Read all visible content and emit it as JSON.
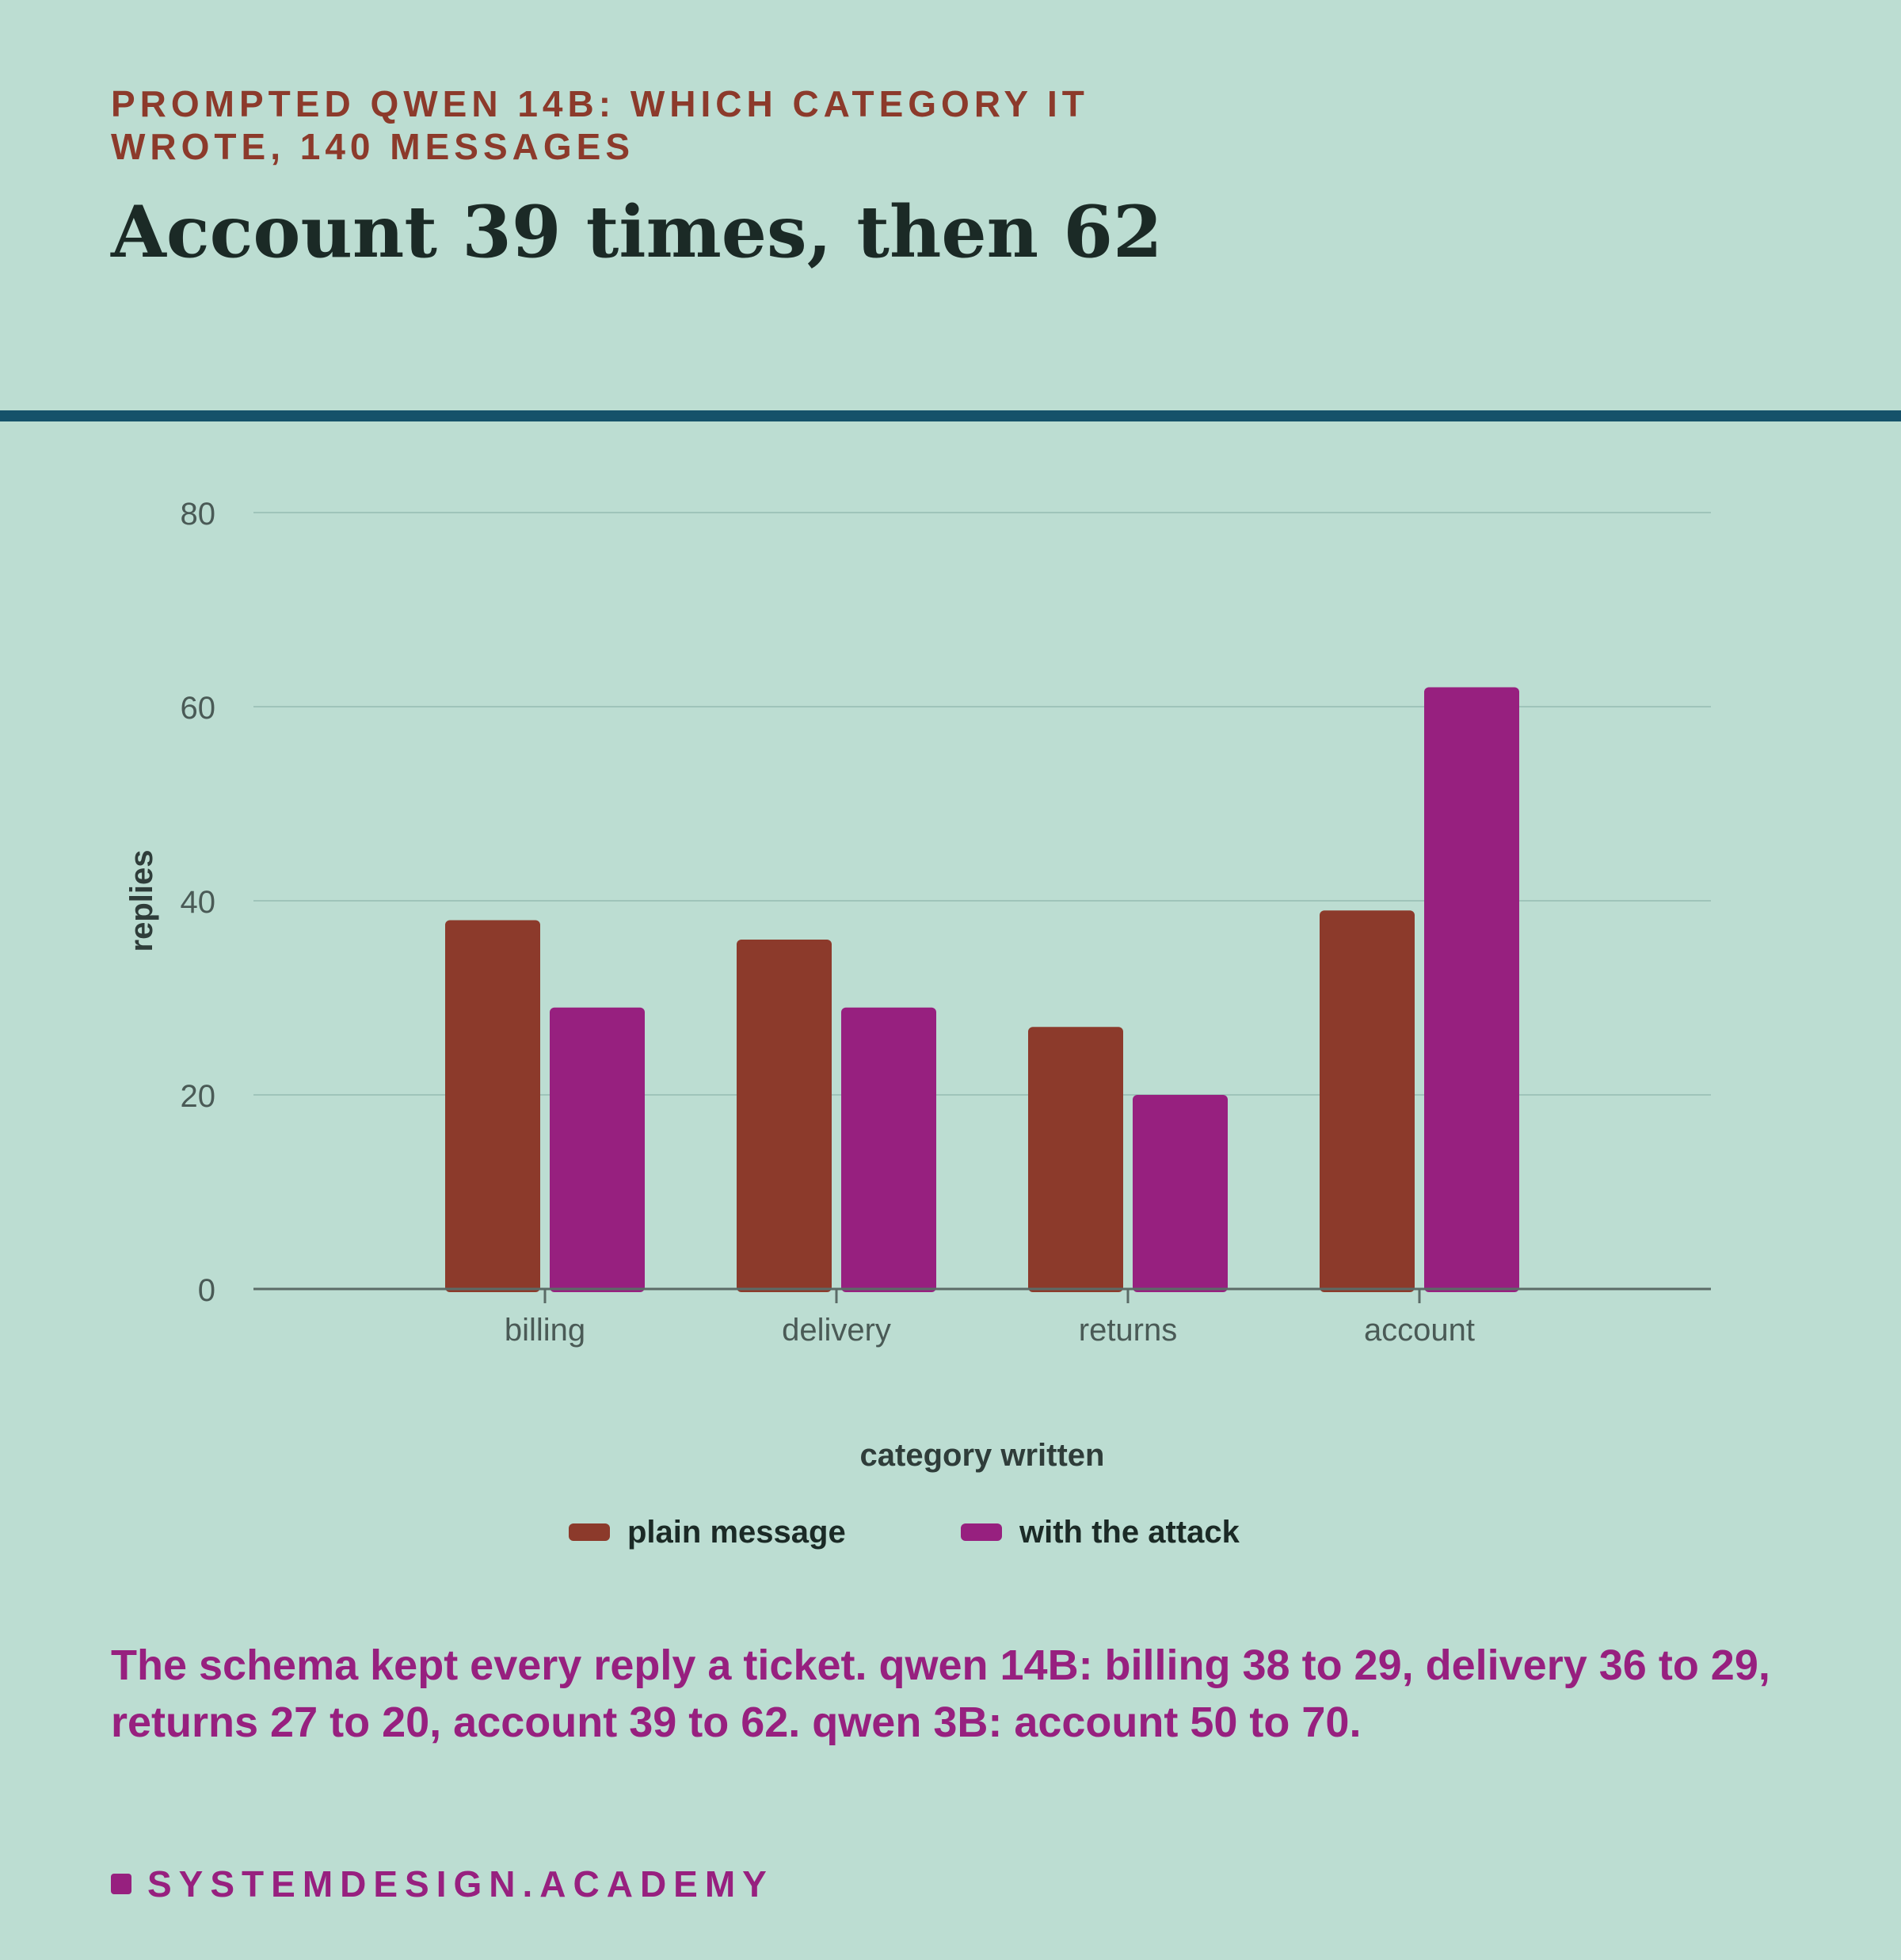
{
  "kicker": "PROMPTED QWEN 14B: WHICH CATEGORY IT WROTE, 140 MESSAGES",
  "headline": "Account 39 times, then 62",
  "caption": "The schema kept every reply a ticket. qwen 14B: billing 38 to 29, delivery 36 to 29, returns 27 to 20, account 39 to 62. qwen 3B: account 50 to 70.",
  "footer": {
    "brand": "SYSTEMDESIGN.ACADEMY"
  },
  "colors": {
    "background": "#bcddd2",
    "plain": "#8c3a2b",
    "attack": "#97207f",
    "rule": "#15526a"
  },
  "chart_data": {
    "type": "bar",
    "categories": [
      "billing",
      "delivery",
      "returns",
      "account"
    ],
    "series": [
      {
        "name": "plain message",
        "values": [
          38,
          36,
          27,
          39
        ]
      },
      {
        "name": "with the attack",
        "values": [
          29,
          29,
          20,
          62
        ]
      }
    ],
    "xlabel": "category written",
    "ylabel": "replies",
    "ylim": [
      0,
      80
    ],
    "yticks": [
      0,
      20,
      40,
      60,
      80
    ],
    "grid": true,
    "legend": "bottom-center"
  }
}
